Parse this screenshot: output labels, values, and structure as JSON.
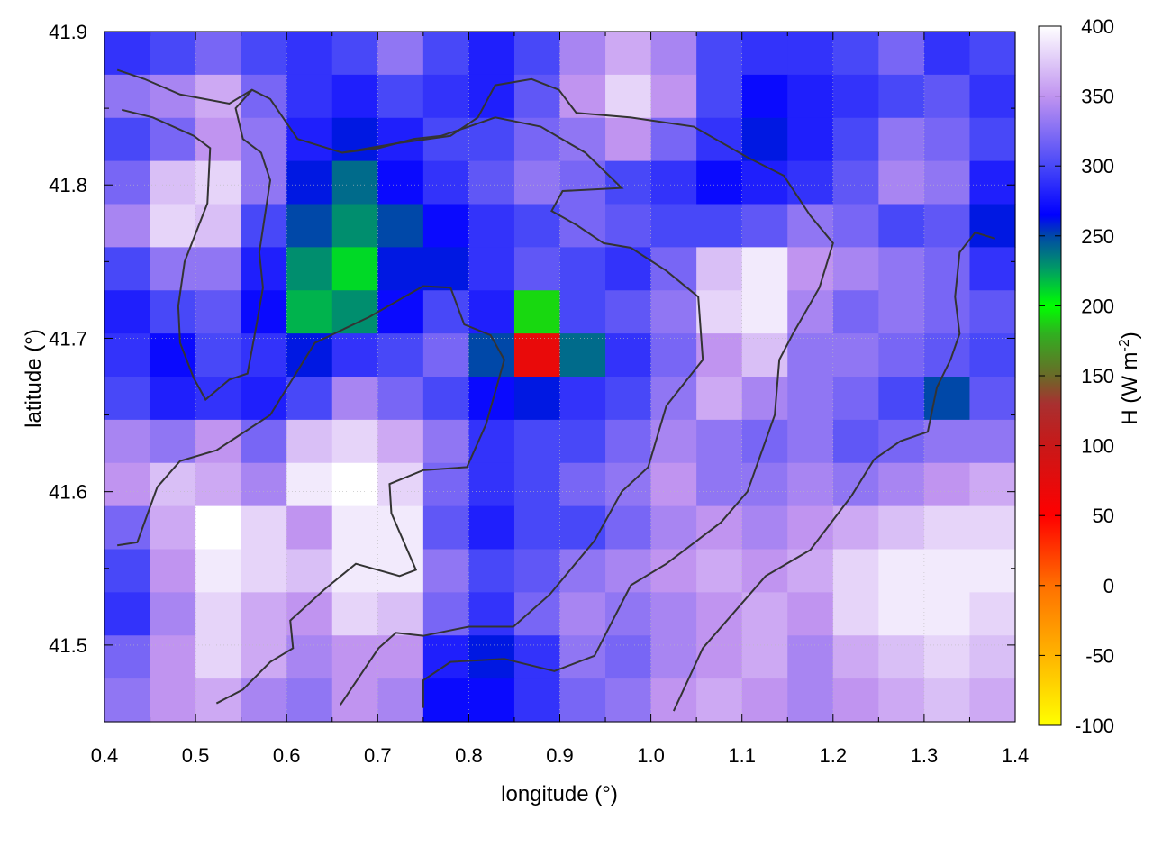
{
  "chart_data": {
    "type": "heatmap",
    "xlabel": "longitude (°)",
    "ylabel": "latitude (°)",
    "colorbar_label": "H (W m",
    "colorbar_label_sup": "-2",
    "colorbar_label_end": ")",
    "xlim": [
      0.4,
      1.4
    ],
    "ylim": [
      41.45,
      41.9
    ],
    "clim": [
      -100,
      400
    ],
    "xticks": [
      "0.4",
      "0.5",
      "0.6",
      "0.7",
      "0.8",
      "0.9",
      "1.0",
      "1.1",
      "1.2",
      "1.3",
      "1.4"
    ],
    "yticks": [
      "41.5",
      "41.6",
      "41.7",
      "41.8",
      "41.9"
    ],
    "cticks": [
      "-100",
      "-50",
      "0",
      "50",
      "100",
      "150",
      "200",
      "250",
      "300",
      "350",
      "400"
    ],
    "grid": true,
    "palette": [
      {
        "v": -100,
        "c": "#ffff00"
      },
      {
        "v": -50,
        "c": "#ffb400"
      },
      {
        "v": 0,
        "c": "#ff7000"
      },
      {
        "v": 50,
        "c": "#ff0000"
      },
      {
        "v": 100,
        "c": "#c81818"
      },
      {
        "v": 130,
        "c": "#a83030"
      },
      {
        "v": 150,
        "c": "#6a6a28"
      },
      {
        "v": 180,
        "c": "#30b020"
      },
      {
        "v": 200,
        "c": "#00ff00"
      },
      {
        "v": 225,
        "c": "#00a060"
      },
      {
        "v": 250,
        "c": "#0048a8"
      },
      {
        "v": 265,
        "c": "#0000ff"
      },
      {
        "v": 300,
        "c": "#4848f8"
      },
      {
        "v": 350,
        "c": "#c094f0"
      },
      {
        "v": 400,
        "c": "#ffffff"
      }
    ],
    "grid_lon": [
      0.4,
      1.4
    ],
    "grid_lat": [
      41.9,
      41.45
    ],
    "values": [
      [
        290,
        300,
        320,
        300,
        290,
        300,
        330,
        300,
        280,
        300,
        340,
        360,
        340,
        300,
        290,
        290,
        300,
        320,
        290,
        300
      ],
      [
        330,
        340,
        360,
        320,
        290,
        280,
        300,
        290,
        280,
        310,
        350,
        380,
        350,
        300,
        270,
        280,
        290,
        300,
        310,
        290
      ],
      [
        300,
        320,
        350,
        330,
        280,
        260,
        280,
        300,
        300,
        320,
        330,
        350,
        320,
        290,
        260,
        280,
        300,
        330,
        320,
        300
      ],
      [
        320,
        370,
        380,
        330,
        260,
        240,
        270,
        290,
        310,
        330,
        320,
        300,
        290,
        270,
        280,
        290,
        310,
        340,
        330,
        280
      ],
      [
        340,
        380,
        370,
        300,
        250,
        230,
        250,
        270,
        290,
        300,
        320,
        310,
        300,
        300,
        310,
        330,
        320,
        300,
        310,
        260
      ],
      [
        300,
        330,
        330,
        280,
        230,
        210,
        260,
        260,
        290,
        310,
        300,
        290,
        320,
        370,
        390,
        350,
        340,
        330,
        320,
        290
      ],
      [
        280,
        300,
        310,
        270,
        220,
        230,
        270,
        300,
        280,
        190,
        300,
        310,
        330,
        380,
        390,
        340,
        320,
        330,
        320,
        310
      ],
      [
        290,
        270,
        300,
        290,
        260,
        290,
        300,
        320,
        250,
        70,
        240,
        290,
        320,
        350,
        370,
        330,
        330,
        320,
        310,
        300
      ],
      [
        300,
        280,
        290,
        280,
        300,
        340,
        320,
        300,
        270,
        260,
        290,
        300,
        330,
        360,
        340,
        330,
        320,
        300,
        250,
        310
      ],
      [
        340,
        330,
        350,
        320,
        370,
        380,
        360,
        330,
        290,
        300,
        300,
        320,
        340,
        330,
        320,
        330,
        310,
        320,
        330,
        330
      ],
      [
        350,
        370,
        360,
        340,
        390,
        400,
        380,
        320,
        290,
        300,
        320,
        330,
        350,
        330,
        330,
        340,
        330,
        340,
        350,
        360
      ],
      [
        320,
        360,
        400,
        380,
        350,
        390,
        390,
        310,
        280,
        300,
        300,
        320,
        340,
        350,
        340,
        350,
        360,
        370,
        380,
        380
      ],
      [
        300,
        350,
        390,
        380,
        370,
        390,
        390,
        330,
        300,
        310,
        330,
        340,
        350,
        360,
        350,
        360,
        380,
        390,
        390,
        390
      ],
      [
        290,
        340,
        380,
        360,
        350,
        380,
        370,
        320,
        290,
        320,
        340,
        330,
        340,
        350,
        360,
        350,
        380,
        390,
        390,
        380
      ],
      [
        320,
        350,
        380,
        360,
        340,
        350,
        350,
        280,
        260,
        290,
        330,
        320,
        340,
        350,
        360,
        340,
        360,
        370,
        380,
        370
      ],
      [
        330,
        350,
        360,
        340,
        330,
        350,
        340,
        270,
        270,
        290,
        320,
        330,
        350,
        360,
        350,
        340,
        350,
        360,
        370,
        360
      ]
    ],
    "contour_color": "#333333",
    "contours": [
      [
        [
          0.414,
          41.565
        ],
        [
          0.436,
          41.567
        ],
        [
          0.458,
          41.603
        ],
        [
          0.483,
          41.62
        ],
        [
          0.523,
          41.627
        ],
        [
          0.582,
          41.65
        ],
        [
          0.631,
          41.697
        ],
        [
          0.691,
          41.714
        ],
        [
          0.75,
          41.734
        ],
        [
          0.78,
          41.733
        ],
        [
          0.795,
          41.709
        ],
        [
          0.824,
          41.702
        ],
        [
          0.839,
          41.686
        ],
        [
          0.819,
          41.644
        ],
        [
          0.798,
          41.616
        ],
        [
          0.75,
          41.614
        ],
        [
          0.713,
          41.605
        ],
        [
          0.715,
          41.586
        ],
        [
          0.742,
          41.549
        ],
        [
          0.724,
          41.545
        ],
        [
          0.676,
          41.553
        ],
        [
          0.641,
          41.536
        ],
        [
          0.604,
          41.516
        ],
        [
          0.607,
          41.498
        ],
        [
          0.582,
          41.489
        ],
        [
          0.552,
          41.471
        ],
        [
          0.523,
          41.462
        ]
      ],
      [
        [
          0.75,
          41.459
        ],
        [
          0.75,
          41.477
        ],
        [
          0.78,
          41.489
        ],
        [
          0.839,
          41.491
        ],
        [
          0.894,
          41.483
        ],
        [
          0.938,
          41.493
        ],
        [
          0.978,
          41.539
        ],
        [
          1.017,
          41.553
        ],
        [
          1.077,
          41.58
        ],
        [
          1.106,
          41.6
        ],
        [
          1.136,
          41.65
        ],
        [
          1.141,
          41.686
        ],
        [
          1.156,
          41.703
        ],
        [
          1.185,
          41.733
        ],
        [
          1.2,
          41.762
        ],
        [
          1.175,
          41.78
        ],
        [
          1.146,
          41.806
        ],
        [
          1.106,
          41.818
        ],
        [
          1.047,
          41.838
        ],
        [
          0.978,
          41.844
        ],
        [
          0.918,
          41.847
        ],
        [
          0.899,
          41.862
        ],
        [
          0.869,
          41.869
        ],
        [
          0.829,
          41.865
        ],
        [
          0.81,
          41.844
        ],
        [
          0.78,
          41.832
        ],
        [
          0.72,
          41.827
        ],
        [
          0.661,
          41.821
        ],
        [
          0.612,
          41.83
        ],
        [
          0.582,
          41.856
        ],
        [
          0.562,
          41.862
        ],
        [
          0.537,
          41.853
        ],
        [
          0.483,
          41.859
        ],
        [
          0.444,
          41.869
        ],
        [
          0.414,
          41.875
        ]
      ],
      [
        [
          0.659,
          41.461
        ],
        [
          0.701,
          41.498
        ],
        [
          0.72,
          41.508
        ],
        [
          0.75,
          41.506
        ],
        [
          0.8,
          41.512
        ],
        [
          0.849,
          41.512
        ],
        [
          0.889,
          41.533
        ],
        [
          0.938,
          41.568
        ],
        [
          0.968,
          41.6
        ],
        [
          0.997,
          41.616
        ],
        [
          1.017,
          41.656
        ],
        [
          1.057,
          41.686
        ],
        [
          1.052,
          41.727
        ],
        [
          1.017,
          41.744
        ],
        [
          0.978,
          41.759
        ],
        [
          0.948,
          41.762
        ],
        [
          0.918,
          41.774
        ],
        [
          0.891,
          41.783
        ],
        [
          0.903,
          41.796
        ],
        [
          0.968,
          41.798
        ],
        [
          0.928,
          41.821
        ],
        [
          0.879,
          41.838
        ],
        [
          0.829,
          41.844
        ],
        [
          0.8,
          41.838
        ],
        [
          0.77,
          41.832
        ],
        [
          0.74,
          41.83
        ],
        [
          0.701,
          41.824
        ],
        [
          0.661,
          41.821
        ]
      ],
      [
        [
          1.025,
          41.457
        ],
        [
          1.057,
          41.498
        ],
        [
          1.126,
          41.545
        ],
        [
          1.175,
          41.562
        ],
        [
          1.22,
          41.597
        ],
        [
          1.245,
          41.621
        ],
        [
          1.274,
          41.633
        ],
        [
          1.304,
          41.639
        ],
        [
          1.314,
          41.668
        ],
        [
          1.329,
          41.686
        ],
        [
          1.339,
          41.703
        ],
        [
          1.334,
          41.727
        ],
        [
          1.339,
          41.756
        ],
        [
          1.356,
          41.769
        ],
        [
          1.378,
          41.765
        ]
      ],
      [
        [
          0.419,
          41.849
        ],
        [
          0.453,
          41.844
        ],
        [
          0.498,
          41.832
        ],
        [
          0.516,
          41.824
        ],
        [
          0.513,
          41.788
        ],
        [
          0.488,
          41.75
        ],
        [
          0.481,
          41.721
        ],
        [
          0.483,
          41.697
        ],
        [
          0.498,
          41.674
        ],
        [
          0.511,
          41.66
        ],
        [
          0.537,
          41.673
        ],
        [
          0.557,
          41.677
        ],
        [
          0.567,
          41.709
        ],
        [
          0.574,
          41.733
        ],
        [
          0.57,
          41.756
        ],
        [
          0.582,
          41.803
        ],
        [
          0.572,
          41.821
        ],
        [
          0.552,
          41.83
        ],
        [
          0.544,
          41.85
        ],
        [
          0.562,
          41.862
        ]
      ]
    ]
  }
}
